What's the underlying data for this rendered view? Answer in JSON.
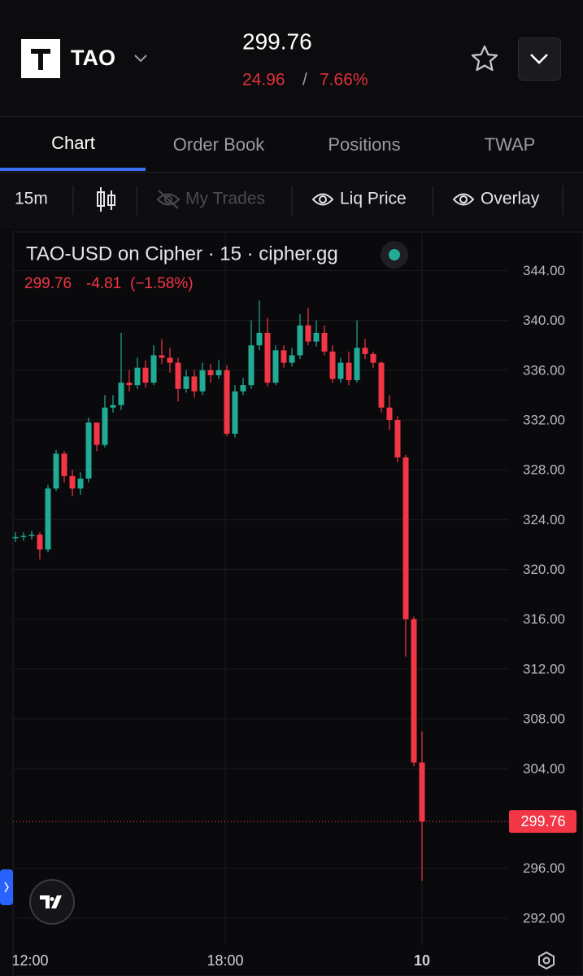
{
  "header": {
    "symbol": "TAO",
    "price": "299.76",
    "change": "24.96",
    "separator": "/",
    "change_pct": "7.66%"
  },
  "tabs": [
    "Chart",
    "Order Book",
    "Positions",
    "TWAP"
  ],
  "toolbar": {
    "interval": "15m",
    "my_trades": "My Trades",
    "liq_price": "Liq Price",
    "overlay": "Overlay"
  },
  "chart_data": {
    "type": "candlestick",
    "title": "TAO-USD on Cipher · 15 · cipher.gg",
    "legend_values": [
      "299.76",
      "-4.81",
      "(−1.58%)"
    ],
    "xtick_labels": [
      "12:00",
      "18:00",
      "10"
    ],
    "ylim": [
      289.9,
      347.1
    ],
    "yticks": [
      {
        "value": 344,
        "label": "344.00"
      },
      {
        "value": 340,
        "label": "340.00"
      },
      {
        "value": 336,
        "label": "336.00"
      },
      {
        "value": 332,
        "label": "332.00"
      },
      {
        "value": 328,
        "label": "328.00"
      },
      {
        "value": 324,
        "label": "324.00"
      },
      {
        "value": 320,
        "label": "320.00"
      },
      {
        "value": 316,
        "label": "316.00"
      },
      {
        "value": 312,
        "label": "312.00"
      },
      {
        "value": 308,
        "label": "308.00"
      },
      {
        "value": 304,
        "label": "304.00"
      },
      {
        "value": 296,
        "label": "296.00"
      },
      {
        "value": 292,
        "label": "292.00"
      }
    ],
    "last_price": 299.76,
    "up_color": "#22ab94",
    "down_color": "#f23645",
    "grid": true,
    "open": [
      322.5,
      322.6,
      322.7,
      322.8,
      321.6,
      326.5,
      329.3,
      327.5,
      326.5,
      327.3,
      331.8,
      330.0,
      333.0,
      333.2,
      335.0,
      334.8,
      336.2,
      335.0,
      337.2,
      337.0,
      336.6,
      334.5,
      335.5,
      334.3,
      336.0,
      335.6,
      336.0,
      330.9,
      334.3,
      334.8,
      338.0,
      339.0,
      335.0,
      337.6,
      336.6,
      337.2,
      339.6,
      338.3,
      339.0,
      337.5,
      335.3,
      336.6,
      335.2,
      337.8,
      337.3,
      336.6,
      333.0,
      332.0,
      329.0,
      316.0,
      304.5
    ],
    "high": [
      323.0,
      323.0,
      323.1,
      323.0,
      326.8,
      329.6,
      329.5,
      328.0,
      327.8,
      332.2,
      331.8,
      334.0,
      334.0,
      339.0,
      336.0,
      337.0,
      336.8,
      338.0,
      338.5,
      337.8,
      337.0,
      336.0,
      336.0,
      336.6,
      336.5,
      336.8,
      336.4,
      334.8,
      335.4,
      340.0,
      341.6,
      340.2,
      338.0,
      338.0,
      337.8,
      340.5,
      341.0,
      340.0,
      339.6,
      338.0,
      337.0,
      337.5,
      340.0,
      338.5,
      337.5,
      336.7,
      334.0,
      332.3,
      329.2,
      316.2,
      307.0
    ],
    "low": [
      322.2,
      322.3,
      322.4,
      320.8,
      321.4,
      326.3,
      327.0,
      325.9,
      326.0,
      327.0,
      329.5,
      329.8,
      332.6,
      332.8,
      334.3,
      334.5,
      334.6,
      334.8,
      336.5,
      335.8,
      333.5,
      334.2,
      333.8,
      334.0,
      335.0,
      335.3,
      330.7,
      330.6,
      334.0,
      334.5,
      337.6,
      334.7,
      334.8,
      336.2,
      336.3,
      336.9,
      338.0,
      337.9,
      337.2,
      335.0,
      335.0,
      334.8,
      335.0,
      336.9,
      336.2,
      332.6,
      331.2,
      328.6,
      313.0,
      304.2,
      295.0
    ],
    "close": [
      322.6,
      322.7,
      322.8,
      321.6,
      326.5,
      329.3,
      327.5,
      326.5,
      327.3,
      331.8,
      330.0,
      333.0,
      333.2,
      335.0,
      334.8,
      336.2,
      335.0,
      337.2,
      337.0,
      336.6,
      334.5,
      335.5,
      334.3,
      336.0,
      335.6,
      336.0,
      330.9,
      334.3,
      334.8,
      338.0,
      339.0,
      335.0,
      337.6,
      336.6,
      337.2,
      339.6,
      338.3,
      339.0,
      337.5,
      335.3,
      336.6,
      335.2,
      337.8,
      337.3,
      336.6,
      333.0,
      332.0,
      329.0,
      316.0,
      304.5,
      299.76
    ]
  }
}
